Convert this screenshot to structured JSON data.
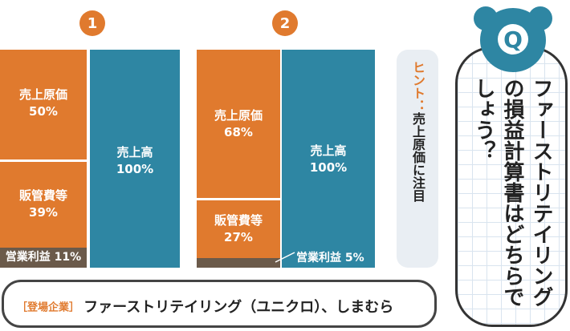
{
  "chart1": {
    "number": "1",
    "cost_label": "売上原価",
    "cost_pct": "50%",
    "sga_label": "販管費等",
    "sga_pct": "39%",
    "profit_label": "営業利益",
    "profit_pct": "11%",
    "sales_label": "売上高",
    "sales_pct": "100%"
  },
  "chart2": {
    "number": "2",
    "cost_label": "売上原価",
    "cost_pct": "68%",
    "sga_label": "販管費等",
    "sga_pct": "27%",
    "profit_label": "営業利益",
    "profit_pct": "5%",
    "sales_label": "売上高",
    "sales_pct": "100%"
  },
  "hint": {
    "label": "ヒント：",
    "text": "売上原価に注目"
  },
  "question": {
    "badge": "Q",
    "text": "ファーストリテイリングの損益計算書はどちらでしょう？"
  },
  "companies": {
    "tag": "［登場企業］",
    "names": "ファーストリテイリング（ユニクロ）、しまむら"
  },
  "colors": {
    "cost": "#e07a2e",
    "sales": "#2e86a3",
    "profit": "#6b5a4a",
    "badge": "#2e86a3"
  },
  "chart_data": [
    {
      "type": "bar",
      "name": "1",
      "segments": [
        {
          "label": "売上原価",
          "value": 50
        },
        {
          "label": "販管費等",
          "value": 39
        },
        {
          "label": "営業利益",
          "value": 11
        },
        {
          "label": "売上高",
          "value": 100
        }
      ]
    },
    {
      "type": "bar",
      "name": "2",
      "segments": [
        {
          "label": "売上原価",
          "value": 68
        },
        {
          "label": "販管費等",
          "value": 27
        },
        {
          "label": "営業利益",
          "value": 5
        },
        {
          "label": "売上高",
          "value": 100
        }
      ]
    }
  ]
}
